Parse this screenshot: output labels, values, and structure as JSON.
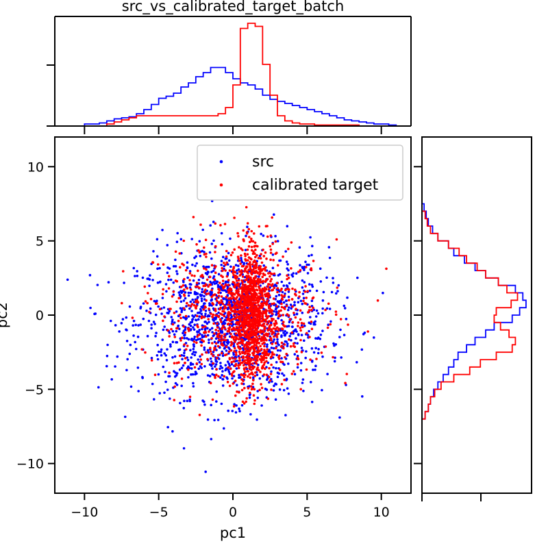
{
  "chart_data": {
    "type": "scatter",
    "title": "src_vs_calibrated_target_batch",
    "xlabel": "pc1",
    "ylabel": "pc2",
    "xlim": [
      -12,
      12
    ],
    "ylim": [
      -12,
      12
    ],
    "xticks": [
      -10,
      -5,
      0,
      5,
      10
    ],
    "yticks": [
      -10,
      -5,
      0,
      5,
      10
    ],
    "legend_position": "top-right",
    "series": [
      {
        "name": "src",
        "color": "#0000ff",
        "x_hist": {
          "edges": [
            -10,
            -9.5,
            -9,
            -8.5,
            -8,
            -7.5,
            -7,
            -6.5,
            -6,
            -5.5,
            -5,
            -4.5,
            -4,
            -3.5,
            -3,
            -2.5,
            -2,
            -1.5,
            -1,
            -0.5,
            0,
            0.5,
            1,
            1.5,
            2,
            2.5,
            3,
            3.5,
            4,
            4.5,
            5,
            5.5,
            6,
            6.5,
            7,
            7.5,
            8,
            8.5,
            9,
            9.5,
            10,
            10.5,
            11
          ],
          "heights": [
            0.02,
            0.02,
            0.03,
            0.05,
            0.07,
            0.08,
            0.09,
            0.12,
            0.16,
            0.21,
            0.27,
            0.29,
            0.32,
            0.38,
            0.42,
            0.48,
            0.52,
            0.57,
            0.57,
            0.52,
            0.46,
            0.42,
            0.4,
            0.36,
            0.3,
            0.26,
            0.24,
            0.22,
            0.2,
            0.18,
            0.16,
            0.14,
            0.12,
            0.1,
            0.08,
            0.06,
            0.05,
            0.04,
            0.03,
            0.02,
            0.02,
            0.01
          ]
        },
        "y_hist": {
          "edges": [
            7.5,
            7,
            6.5,
            6,
            5.5,
            5,
            4.5,
            4,
            3.5,
            3,
            2.5,
            2,
            1.5,
            1,
            0.5,
            0,
            -0.5,
            -1,
            -1.5,
            -2,
            -2.5,
            -3,
            -3.5,
            -4,
            -4.5,
            -5,
            -5.5,
            -6,
            -6.5,
            -7
          ],
          "heights": [
            0.02,
            0.04,
            0.06,
            0.1,
            0.15,
            0.25,
            0.3,
            0.4,
            0.5,
            0.6,
            0.72,
            0.88,
            0.95,
            0.98,
            0.92,
            0.85,
            0.68,
            0.6,
            0.5,
            0.42,
            0.34,
            0.3,
            0.25,
            0.2,
            0.15,
            0.11,
            0.08,
            0.06,
            0.03
          ]
        },
        "cloud": {
          "mean": [
            0.0,
            -0.5
          ],
          "std": [
            3.2,
            2.5
          ],
          "count": 1500
        }
      },
      {
        "name": "calibrated target",
        "color": "#ff0000",
        "x_hist": {
          "edges": [
            -10,
            -9.5,
            -9,
            -8.5,
            -8,
            -7.5,
            -7,
            -6.5,
            -6,
            -5.5,
            -5,
            -4.5,
            -4,
            -3.5,
            -3,
            -2.5,
            -2,
            -1.5,
            -1,
            -0.5,
            0,
            0.5,
            1,
            1.5,
            2,
            2.5,
            3,
            3.5,
            4,
            4.5,
            5,
            5.5,
            6,
            6.5,
            7,
            7.5,
            8,
            8.5,
            9,
            9.5,
            10,
            10.5,
            11
          ],
          "heights": [
            0,
            0,
            0,
            0.02,
            0.04,
            0.06,
            0.08,
            0.1,
            0.1,
            0.1,
            0.1,
            0.1,
            0.1,
            0.1,
            0.1,
            0.1,
            0.1,
            0.1,
            0.12,
            0.18,
            0.4,
            0.95,
            1.0,
            0.97,
            0.6,
            0.3,
            0.1,
            0.05,
            0.03,
            0.02,
            0.02,
            0.01,
            0.01,
            0.01,
            0.01,
            0.01,
            0.01,
            0,
            0,
            0,
            0,
            0
          ]
        },
        "y_hist": {
          "edges": [
            7,
            6.5,
            6,
            5.5,
            5,
            4.5,
            4,
            3.5,
            3,
            2.5,
            2,
            1.5,
            1,
            0.5,
            0,
            -0.5,
            -1,
            -1.5,
            -2,
            -2.5,
            -3,
            -3.5,
            -4,
            -4.5,
            -5,
            -5.5,
            -6,
            -6.5,
            -7
          ],
          "heights": [
            0.03,
            0.05,
            0.08,
            0.15,
            0.25,
            0.35,
            0.42,
            0.52,
            0.6,
            0.72,
            0.8,
            0.9,
            0.84,
            0.7,
            0.68,
            0.74,
            0.82,
            0.88,
            0.85,
            0.7,
            0.55,
            0.45,
            0.3,
            0.18,
            0.12,
            0.08,
            0.06,
            0.03
          ]
        },
        "cloud": {
          "mean": [
            0.5,
            0.2
          ],
          "std": [
            2.6,
            2.3
          ],
          "count": 1700
        }
      }
    ]
  }
}
